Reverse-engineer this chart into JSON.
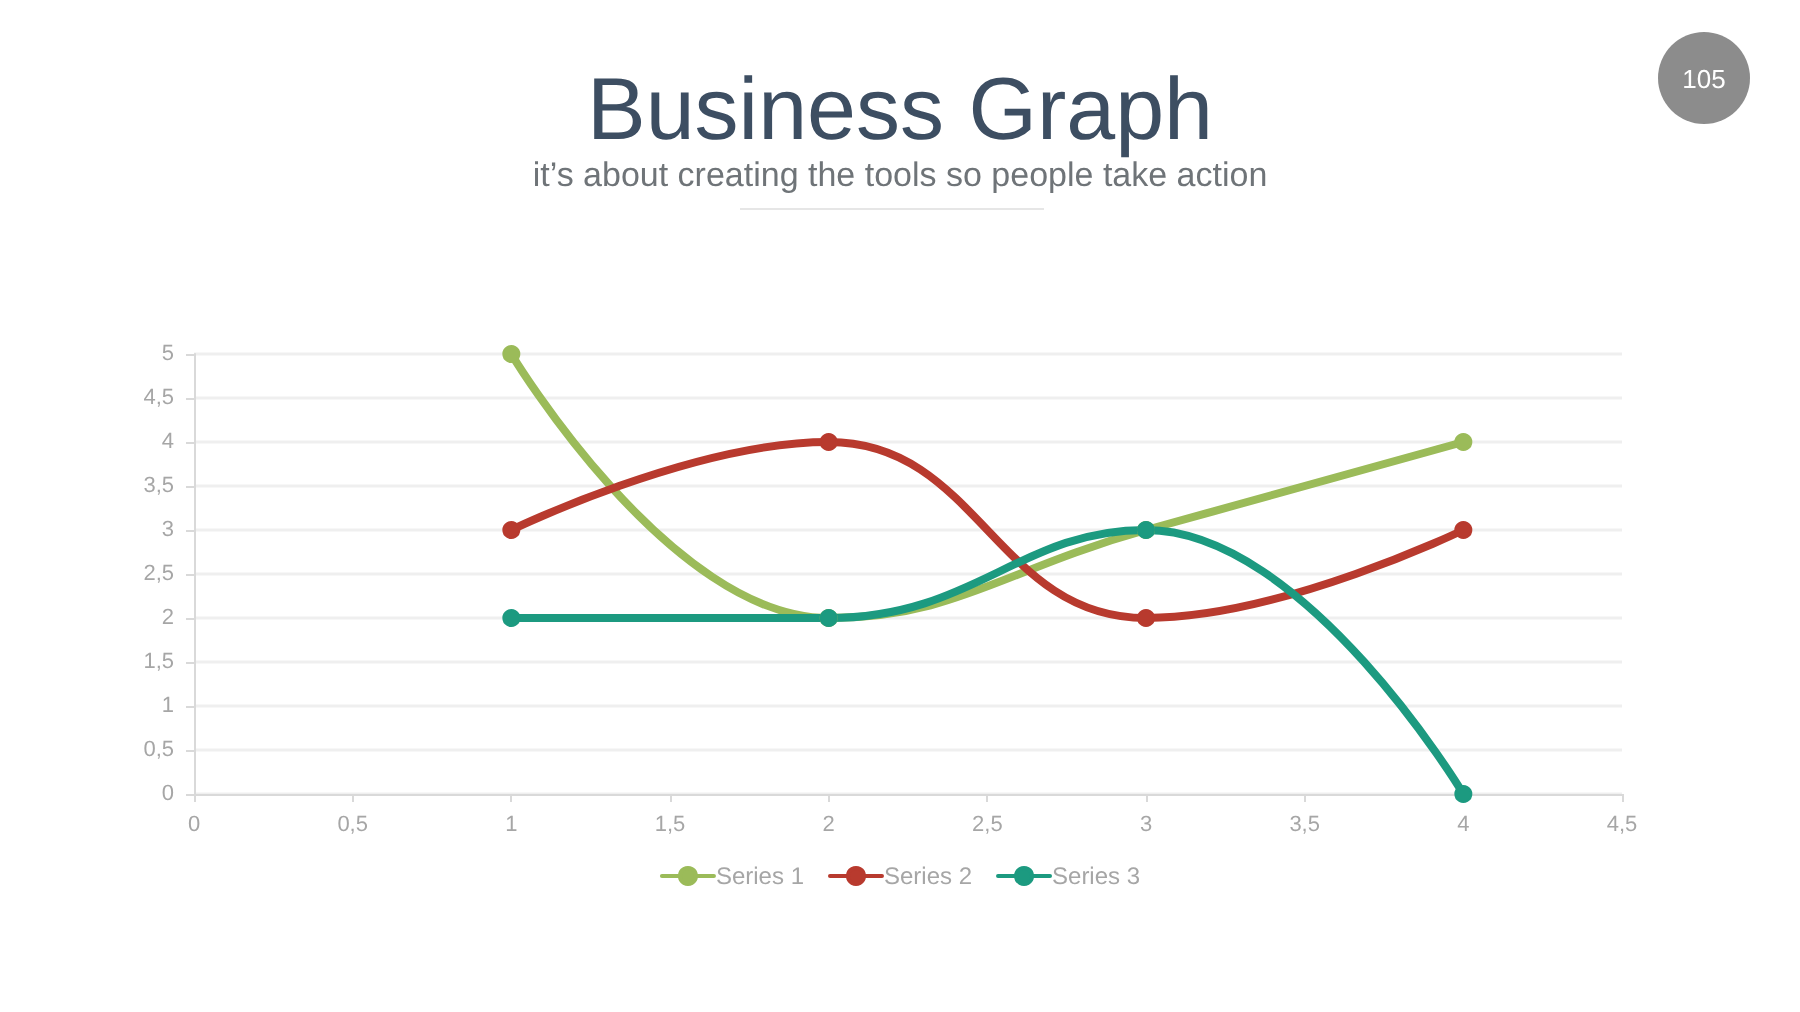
{
  "chart_data": {
    "type": "line",
    "title": "Business Graph",
    "subtitle": "it’s about creating the tools so people take action",
    "annotations": [
      "105"
    ],
    "x": [
      1,
      2,
      3,
      4
    ],
    "series": [
      {
        "name": "Series 1",
        "color": "#9bbb59",
        "values": [
          5,
          2,
          3,
          4
        ]
      },
      {
        "name": "Series 2",
        "color": "#b83a2e",
        "values": [
          3,
          4,
          2,
          3
        ]
      },
      {
        "name": "Series 3",
        "color": "#1c9a80",
        "values": [
          2,
          2,
          3,
          0
        ]
      }
    ],
    "xlim": [
      0,
      4.5
    ],
    "xticks": [
      0,
      {
        "value": 0.5,
        "label": "0,5"
      },
      1,
      {
        "value": 1.5,
        "label": "1,5"
      },
      2,
      {
        "value": 2.5,
        "label": "2,5"
      },
      3,
      {
        "value": 3.5,
        "label": "3,5"
      },
      4,
      {
        "value": 4.5,
        "label": "4,5"
      }
    ],
    "ylim": [
      0,
      5
    ],
    "yticks": [
      0,
      {
        "value": 0.5,
        "label": "0,5"
      },
      1,
      {
        "value": 1.5,
        "label": "1,5"
      },
      2,
      {
        "value": 2.5,
        "label": "2,5"
      },
      3,
      {
        "value": 3.5,
        "label": "3,5"
      },
      4,
      {
        "value": 4.5,
        "label": "4,5"
      },
      5
    ],
    "grid": "y",
    "legend": "bottom",
    "marker": "circle",
    "line_style": "solid"
  }
}
